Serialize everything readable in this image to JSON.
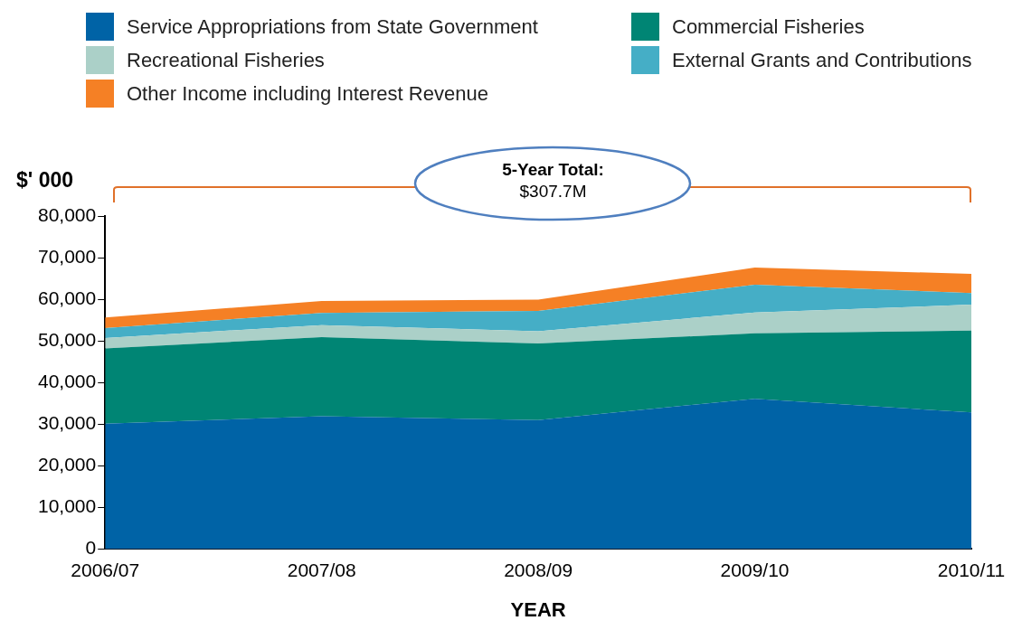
{
  "chart_data": {
    "type": "area",
    "stacked": true,
    "xlabel": "YEAR",
    "ylabel": "$' 000",
    "categories": [
      "2006/07",
      "2007/08",
      "2008/09",
      "2009/10",
      "2010/11"
    ],
    "series": [
      {
        "name": "Service Appropriations from State Government",
        "color": "#0063a6",
        "values": [
          30100,
          31900,
          31000,
          36100,
          32800
        ]
      },
      {
        "name": "Commercial Fisheries",
        "color": "#008574",
        "values": [
          18100,
          19000,
          18400,
          15700,
          19700
        ]
      },
      {
        "name": "Recreational Fisheries",
        "color": "#abd0c8",
        "values": [
          2500,
          2900,
          2900,
          5000,
          6200
        ]
      },
      {
        "name": "External Grants and Contributions",
        "color": "#45aec6",
        "values": [
          2400,
          2900,
          4900,
          6700,
          2800
        ]
      },
      {
        "name": "Other Income including Interest Revenue",
        "color": "#f58025",
        "values": [
          2500,
          2900,
          2700,
          4100,
          4600
        ]
      }
    ],
    "ylim": [
      0,
      80000
    ],
    "yticks": [
      0,
      {
        "value": 10000,
        "label": "10,000"
      },
      {
        "value": 20000,
        "label": "20,000"
      },
      {
        "value": 30000,
        "label": "30,000"
      },
      {
        "value": 40000,
        "label": "40,000"
      },
      {
        "value": 50000,
        "label": "50,000"
      },
      {
        "value": 60000,
        "label": "60,000"
      },
      {
        "value": 70000,
        "label": "70,000"
      },
      {
        "value": 80000,
        "label": "80,000"
      }
    ],
    "grid": false,
    "legend": "top",
    "annotations": [
      "5-Year Total:",
      "$307.7M"
    ]
  }
}
